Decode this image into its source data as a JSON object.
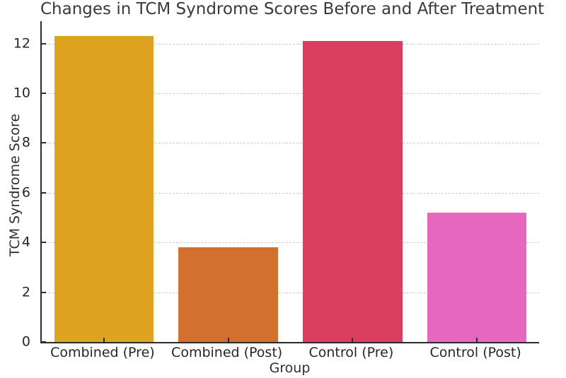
{
  "chart_data": {
    "type": "bar",
    "title": "Changes in TCM Syndrome Scores Before and After Treatment",
    "xlabel": "Group",
    "ylabel": "TCM Syndrome Score",
    "categories": [
      "Combined (Pre)",
      "Combined (Post)",
      "Control (Pre)",
      "Control (Post)"
    ],
    "values": [
      12.3,
      3.8,
      12.1,
      5.2
    ],
    "bar_colors": [
      "#DEA320",
      "#D4702F",
      "#DB3F5F",
      "#E568BE"
    ],
    "yticks": [
      0,
      2,
      4,
      6,
      8,
      10,
      12
    ],
    "ylim": [
      0,
      12.9
    ],
    "bar_width_fraction": 0.8,
    "grid": "horizontal dashed",
    "legend": "none",
    "colors": {
      "axis": "#2b2b2b",
      "gridline": "#cbcbcb",
      "title_text": "#3a3a3a",
      "tick_text": "#262626",
      "background": "#ffffff"
    }
  }
}
